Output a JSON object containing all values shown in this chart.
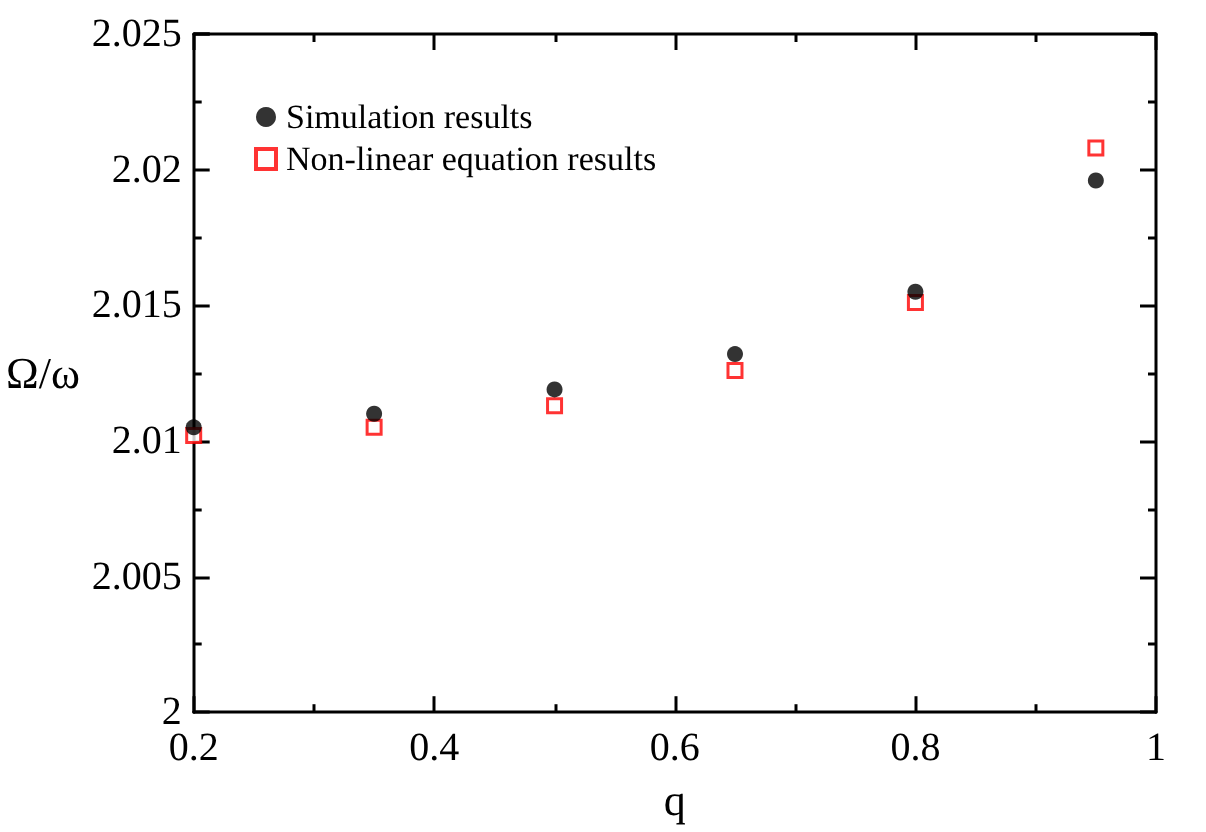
{
  "chart_data": {
    "type": "scatter",
    "xlabel": "q",
    "ylabel": "Ω/ω",
    "x": [
      0.2,
      0.35,
      0.5,
      0.65,
      0.8,
      0.95
    ],
    "series": [
      {
        "name": "Simulation results",
        "color": "#000000",
        "marker": "circle",
        "values": [
          2.0105,
          2.011,
          2.0119,
          2.0132,
          2.0155,
          2.0196
        ]
      },
      {
        "name": "Non-linear equation results",
        "color": "#ff0000",
        "marker": "square",
        "values": [
          2.0102,
          2.0105,
          2.0113,
          2.0126,
          2.0151,
          2.0208
        ]
      }
    ],
    "xlim": [
      0.2,
      1
    ],
    "xticks": [
      0.2,
      0.4,
      0.6,
      0.8,
      1
    ],
    "ylim": [
      2,
      2.025
    ],
    "yticks": [
      2,
      2.005,
      2.01,
      2.015,
      2.02,
      2.025
    ],
    "grid": false,
    "legend": "top left"
  }
}
